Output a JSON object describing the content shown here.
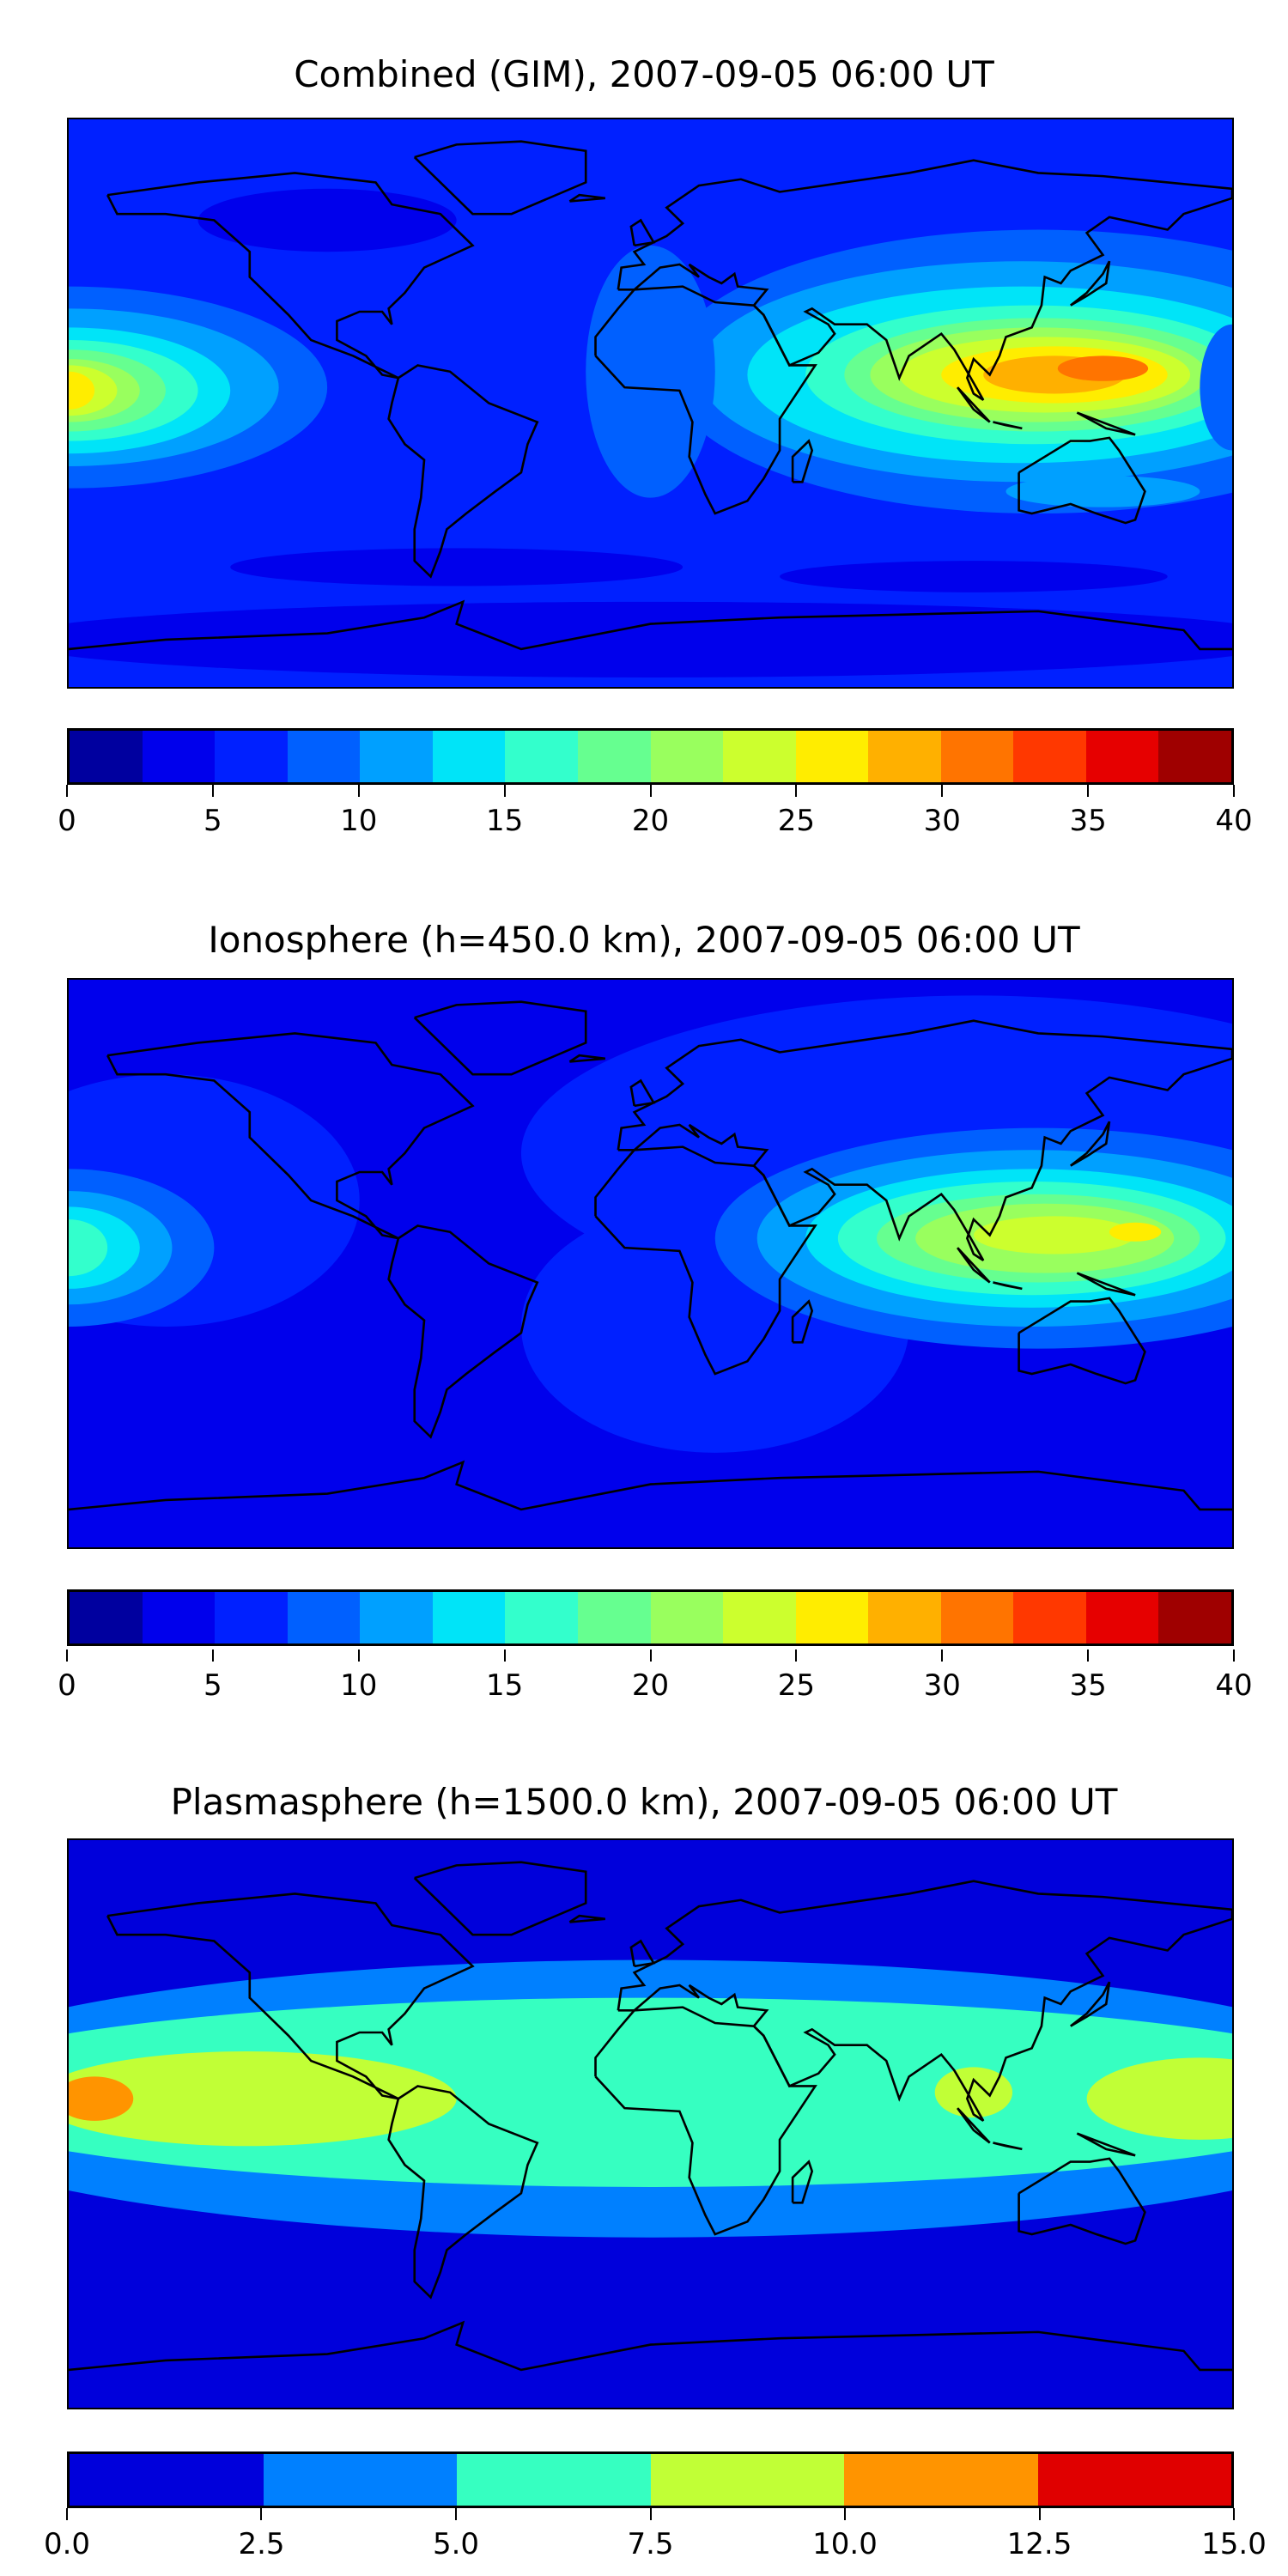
{
  "chart_data": [
    {
      "type": "heatmap",
      "title": "Combined (GIM), 2007-09-05 06:00 UT",
      "levels": [
        0,
        2.5,
        5,
        7.5,
        10,
        12.5,
        15,
        17.5,
        20,
        22.5,
        25,
        27.5,
        30,
        32.5,
        35,
        37.5,
        40
      ],
      "ticks": [
        "0",
        "5",
        "10",
        "15",
        "20",
        "25",
        "30",
        "35",
        "40"
      ],
      "colors": [
        "#00009f",
        "#0000ec",
        "#0020ff",
        "#0060ff",
        "#00a0ff",
        "#00e4f8",
        "#33ffcc",
        "#66ff90",
        "#99ff5e",
        "#ccff2e",
        "#ffed00",
        "#ffb000",
        "#ff7400",
        "#ff3800",
        "#e60000",
        "#9f0000"
      ]
    },
    {
      "type": "heatmap",
      "title": "Ionosphere  (h=450.0 km), 2007-09-05 06:00 UT",
      "levels": [
        0,
        2.5,
        5,
        7.5,
        10,
        12.5,
        15,
        17.5,
        20,
        22.5,
        25,
        27.5,
        30,
        32.5,
        35,
        37.5,
        40
      ],
      "ticks": [
        "0",
        "5",
        "10",
        "15",
        "20",
        "25",
        "30",
        "35",
        "40"
      ],
      "colors": [
        "#00009f",
        "#0000ec",
        "#0020ff",
        "#0060ff",
        "#00a0ff",
        "#00e4f8",
        "#33ffcc",
        "#66ff90",
        "#99ff5e",
        "#ccff2e",
        "#ffed00",
        "#ffb000",
        "#ff7400",
        "#ff3800",
        "#e60000",
        "#9f0000"
      ]
    },
    {
      "type": "heatmap",
      "title": "Plasmasphere (h=1500.0 km), 2007-09-05 06:00 UT",
      "levels": [
        0,
        2.5,
        5,
        7.5,
        10,
        12.5,
        15
      ],
      "ticks": [
        "0.0",
        "2.5",
        "5.0",
        "7.5",
        "10.0",
        "12.5",
        "15.0"
      ],
      "colors": [
        "#0000db",
        "#0080ff",
        "#36ffc1",
        "#c1ff36",
        "#ff9400",
        "#e00000"
      ]
    }
  ]
}
